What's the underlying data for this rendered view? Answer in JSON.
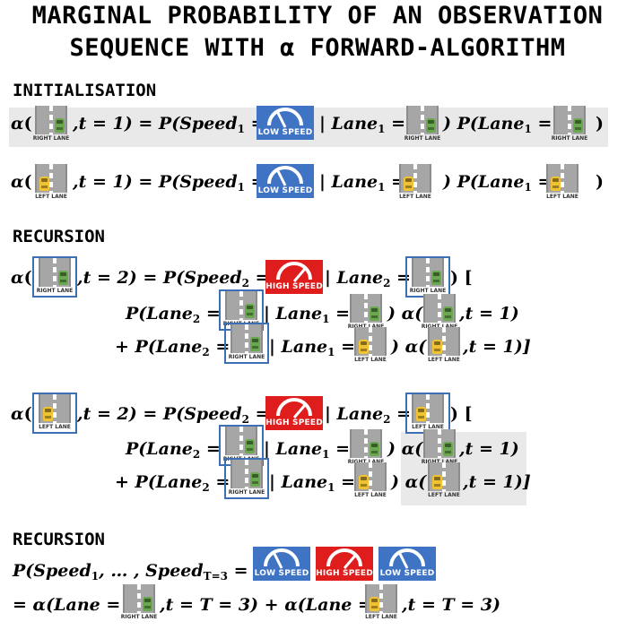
{
  "title": {
    "line1": "MARGINAL PROBABILITY OF AN OBSERVATION",
    "line2": "SEQUENCE WITH α FORWARD-ALGORITHM"
  },
  "sections": {
    "init": "INITIALISATION",
    "rec1": "RECURSION",
    "rec2": "RECURSION"
  },
  "labels": {
    "right_lane": "RIGHT LANE",
    "left_lane": "LEFT LANE",
    "low_speed": "LOW SPEED",
    "high_speed": "HIGH SPEED"
  },
  "symbols": {
    "alpha": "α",
    "open": "(",
    "close": ")",
    "t1": ",t = 1)",
    "t2": ",t = 2)",
    "eqP": " = P(",
    "speed1": "Speed",
    "sub1": "1",
    "sub2": "2",
    "eq": " = ",
    "barLane": " | Lane",
    "barLaneTight": "| Lane",
    "closeP": " ) P(Lane",
    "lbr": ") [",
    "P_lane2": "P(Lane",
    "closeAlpha": ") α(",
    "plusP": "+ P(Lane",
    "close1": ",t = 1)",
    "close1b": ",t = 1)]",
    "seq_start": "P(Speed",
    "seq_mid": ", … , Speed",
    "seq_sub": "T=3",
    "seq_eq": " =",
    "final_start": "=  α(Lane =",
    "final_mid": ",t = T = 3) +  α(Lane =",
    "final_end": ",t =  T = 3)"
  },
  "colors": {
    "low_speed": "#3f73c4",
    "high_speed": "#e01d1d",
    "right_car": "#6aa84f",
    "left_car": "#f1c232",
    "highlight_box": "#3d6fb4"
  }
}
